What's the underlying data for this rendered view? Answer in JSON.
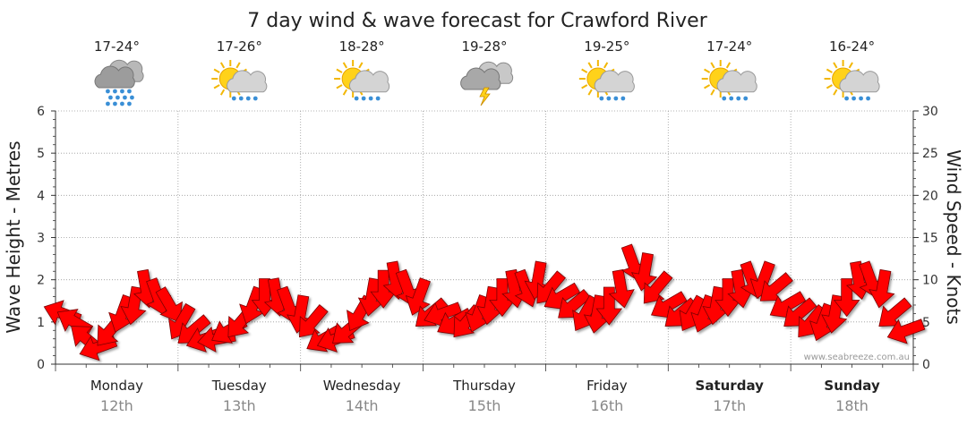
{
  "chart_data": {
    "type": "line",
    "title": "7 day wind & wave forecast for Crawford River",
    "ylabel_left": "Wave Height - Metres",
    "ylabel_right": "Wind Speed - Knots",
    "ylim_left": [
      0,
      6
    ],
    "ylim_right": [
      0,
      30
    ],
    "left_ticks": [
      "0",
      "1",
      "2",
      "3",
      "4",
      "5",
      "6"
    ],
    "right_ticks": [
      "0",
      "5",
      "10",
      "15",
      "20",
      "25",
      "30"
    ],
    "watermark": "www.seabreeze.com.au",
    "days": [
      {
        "name": "Monday",
        "date": "12th",
        "temp": "17-24°",
        "icon": "rain-cloud-icon",
        "bold": false
      },
      {
        "name": "Tuesday",
        "date": "13th",
        "temp": "17-26°",
        "icon": "sun-cloud-showers-icon",
        "bold": false
      },
      {
        "name": "Wednesday",
        "date": "14th",
        "temp": "18-28°",
        "icon": "sun-cloud-showers-icon",
        "bold": false
      },
      {
        "name": "Thursday",
        "date": "15th",
        "temp": "19-28°",
        "icon": "storm-cloud-icon",
        "bold": false
      },
      {
        "name": "Friday",
        "date": "16th",
        "temp": "19-25°",
        "icon": "sun-cloud-showers-icon",
        "bold": false
      },
      {
        "name": "Saturday",
        "date": "17th",
        "temp": "17-24°",
        "icon": "sun-cloud-showers-icon",
        "bold": true
      },
      {
        "name": "Sunday",
        "date": "18th",
        "temp": "16-24°",
        "icon": "sun-cloud-showers-icon",
        "bold": true
      }
    ],
    "series": [
      {
        "name": "Wind Speed",
        "unit": "knots",
        "arrow_color": "#ff0000",
        "values": [
          6,
          5,
          3,
          2,
          4,
          6,
          7,
          9,
          8,
          7,
          5,
          4,
          3,
          3,
          4,
          5,
          7,
          8,
          8,
          7,
          6,
          5,
          3,
          3,
          4,
          6,
          8,
          9,
          10,
          9,
          8,
          6,
          6,
          5,
          5,
          6,
          7,
          8,
          9,
          9,
          10,
          9,
          8,
          7,
          6,
          6,
          7,
          9,
          12,
          11,
          9,
          7,
          6,
          6,
          6,
          7,
          8,
          9,
          10,
          10,
          9,
          7,
          6,
          5,
          5,
          6,
          8,
          10,
          10,
          9,
          6,
          4
        ],
        "directions_deg": [
          200,
          210,
          220,
          160,
          130,
          110,
          100,
          80,
          70,
          60,
          120,
          140,
          160,
          170,
          150,
          130,
          110,
          90,
          80,
          70,
          100,
          130,
          150,
          160,
          140,
          120,
          100,
          90,
          80,
          70,
          110,
          140,
          160,
          150,
          130,
          110,
          100,
          90,
          80,
          70,
          100,
          130,
          150,
          140,
          120,
          100,
          90,
          80,
          70,
          100,
          130,
          150,
          140,
          120,
          110,
          100,
          90,
          80,
          70,
          110,
          140,
          150,
          140,
          130,
          110,
          100,
          90,
          80,
          70,
          100,
          140,
          160
        ]
      }
    ]
  }
}
